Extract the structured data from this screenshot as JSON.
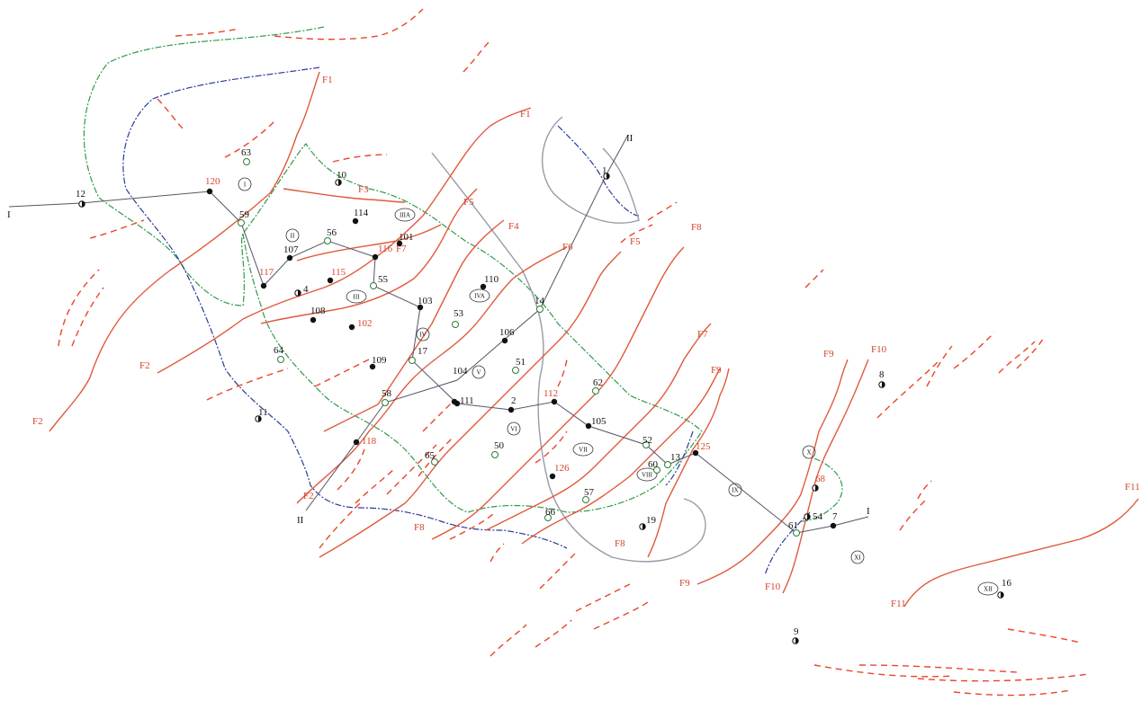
{
  "map": {
    "colors": {
      "fault_solid": "#e05a3c",
      "fault_dashed": "#e8452a",
      "boundary_green": "#2f9a4a",
      "boundary_blue": "#2b3b9a",
      "outline_gray": "#9a9aa8",
      "profile_line": "#555566",
      "well_fill": "#111111",
      "label_red": "#d6422c"
    },
    "profiles": [
      {
        "label_start": "I",
        "label_end": "I"
      },
      {
        "label_start": "II",
        "label_end": "II"
      }
    ],
    "faults": [
      {
        "label": "F1"
      },
      {
        "label": "F2"
      },
      {
        "label": "F3"
      },
      {
        "label": "F4"
      },
      {
        "label": "F5"
      },
      {
        "label": "F6"
      },
      {
        "label": "F7"
      },
      {
        "label": "F8"
      },
      {
        "label": "F9"
      },
      {
        "label": "F10"
      },
      {
        "label": "F11"
      }
    ],
    "blocks": [
      "I",
      "II",
      "IIIA",
      "III",
      "IV",
      "IVA",
      "V",
      "VI",
      "VII",
      "VIII",
      "IX",
      "X",
      "XI",
      "XII"
    ],
    "wells": [
      {
        "id": "12"
      },
      {
        "id": "120"
      },
      {
        "id": "63"
      },
      {
        "id": "10"
      },
      {
        "id": "59"
      },
      {
        "id": "114"
      },
      {
        "id": "56"
      },
      {
        "id": "101"
      },
      {
        "id": "107"
      },
      {
        "id": "116"
      },
      {
        "id": "117"
      },
      {
        "id": "115"
      },
      {
        "id": "55"
      },
      {
        "id": "4"
      },
      {
        "id": "103"
      },
      {
        "id": "110"
      },
      {
        "id": "108"
      },
      {
        "id": "102"
      },
      {
        "id": "53"
      },
      {
        "id": "14"
      },
      {
        "id": "64"
      },
      {
        "id": "17"
      },
      {
        "id": "106"
      },
      {
        "id": "109"
      },
      {
        "id": "51"
      },
      {
        "id": "104"
      },
      {
        "id": "58"
      },
      {
        "id": "62"
      },
      {
        "id": "111"
      },
      {
        "id": "2"
      },
      {
        "id": "112"
      },
      {
        "id": "11"
      },
      {
        "id": "105"
      },
      {
        "id": "118"
      },
      {
        "id": "52"
      },
      {
        "id": "50"
      },
      {
        "id": "125"
      },
      {
        "id": "65"
      },
      {
        "id": "13"
      },
      {
        "id": "60"
      },
      {
        "id": "126"
      },
      {
        "id": "57"
      },
      {
        "id": "66"
      },
      {
        "id": "19"
      },
      {
        "id": "68"
      },
      {
        "id": "54"
      },
      {
        "id": "7"
      },
      {
        "id": "61"
      },
      {
        "id": "8"
      },
      {
        "id": "16"
      },
      {
        "id": "9"
      },
      {
        "id": "1"
      }
    ]
  }
}
